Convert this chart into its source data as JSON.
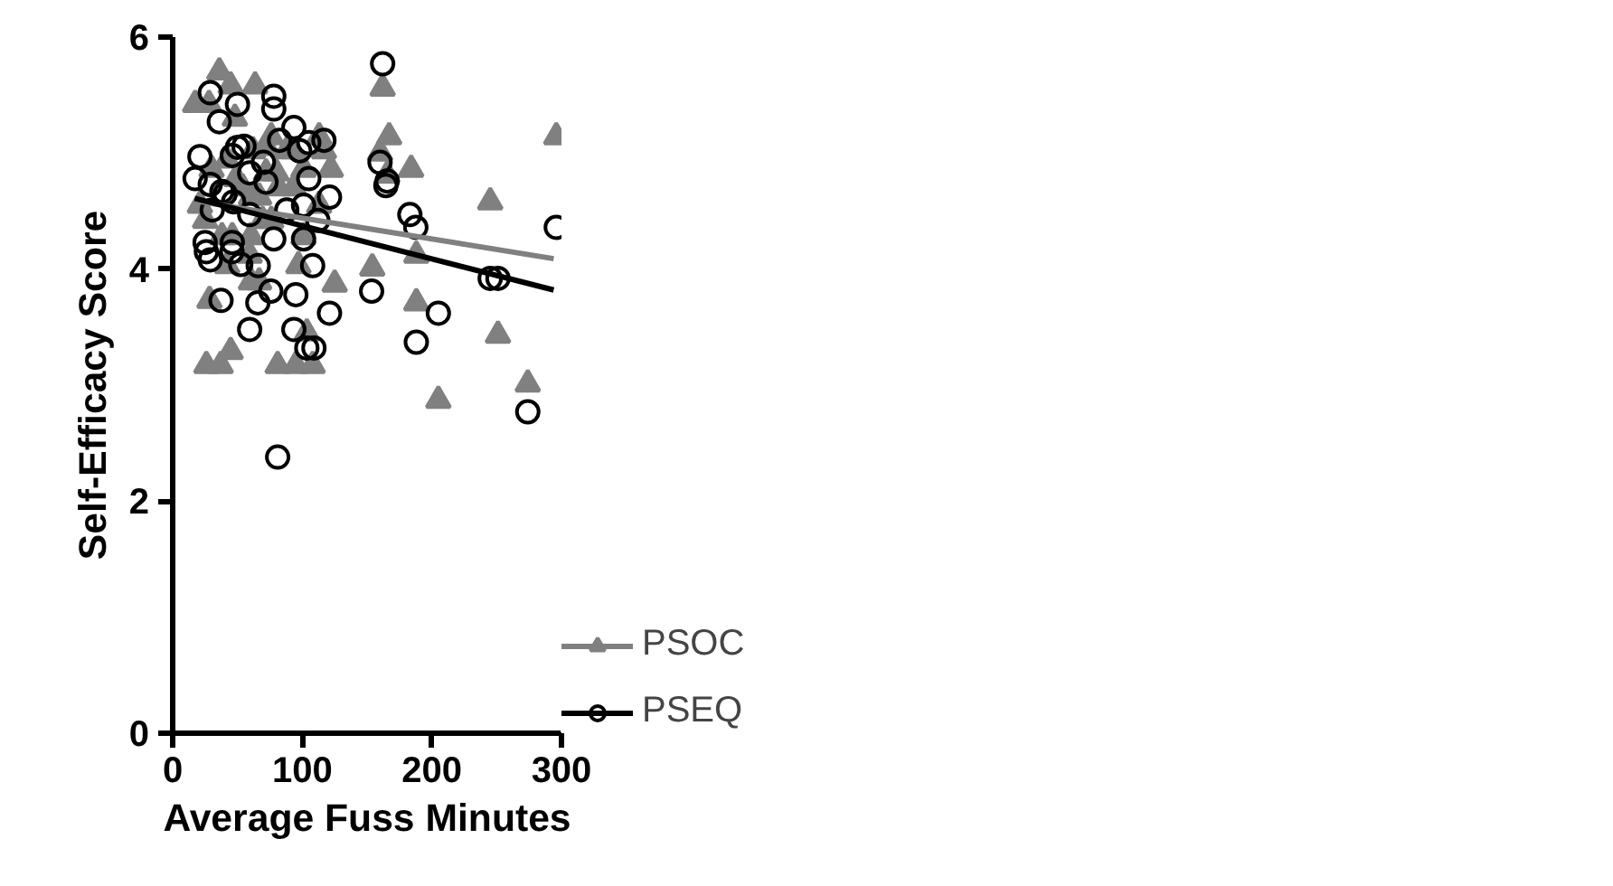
{
  "chart_data": {
    "type": "scatter",
    "xlabel": "Average Fuss Minutes",
    "ylabel": "Self-Efficacy Score",
    "xlim": [
      0,
      300
    ],
    "ylim": [
      0,
      6
    ],
    "xticks": [
      0,
      100,
      200,
      300
    ],
    "yticks": [
      0,
      2,
      4,
      6
    ],
    "grid": false,
    "legend": "right",
    "series": [
      {
        "name": "PSOC",
        "color": "#808080",
        "marker": "triangle",
        "x": [
          162,
          167,
          160,
          165.5,
          184,
          154,
          188,
          188,
          205,
          245,
          251,
          274,
          296,
          63.6,
          76,
          72.5,
          62,
          88,
          93.5,
          113,
          116.7,
          80,
          72,
          101,
          122,
          93.5,
          81.5,
          60.4,
          66.7,
          113,
          69.4,
          76,
          60.4,
          101,
          59.4,
          97,
          60.4,
          66.7,
          125,
          103.5,
          81,
          95,
          108,
          36,
          44.7,
          17.3,
          28,
          48,
          30,
          42,
          49,
          54,
          21,
          25,
          38,
          46,
          42,
          28.4,
          26,
          37,
          44.7
        ],
        "values": [
          5.56,
          5.14,
          5.0,
          4.81,
          4.86,
          4.01,
          4.12,
          3.71,
          2.87,
          4.58,
          3.43,
          3.01,
          5.14,
          5.58,
          5.14,
          5.05,
          5.02,
          5.02,
          5.02,
          5.14,
          5.02,
          4.83,
          4.83,
          4.86,
          4.86,
          4.7,
          4.7,
          4.62,
          4.62,
          4.55,
          4.42,
          4.42,
          4.28,
          4.28,
          4.12,
          4.03,
          3.89,
          3.89,
          3.87,
          3.45,
          3.17,
          3.17,
          3.17,
          5.7,
          5.58,
          5.42,
          5.42,
          5.3,
          4.86,
          4.94,
          4.78,
          4.7,
          4.55,
          4.42,
          4.28,
          4.28,
          4.03,
          3.73,
          3.17,
          3.17,
          3.29
        ]
      },
      {
        "name": "PSEQ",
        "color": "#000000",
        "marker": "circle",
        "x": [
          162,
          160,
          165.5,
          164.5,
          183,
          187.6,
          153.5,
          205,
          188,
          245,
          251,
          274,
          296,
          78,
          78,
          82.5,
          93.5,
          98,
          105,
          116.7,
          70,
          59.4,
          72,
          105,
          121,
          88,
          101,
          112,
          59.4,
          78,
          101,
          108,
          66,
          65.7,
          75.7,
          95,
          59.4,
          93.5,
          103.5,
          109,
          121,
          81,
          29,
          36,
          50,
          21,
          17.3,
          29,
          46,
          50,
          55,
          38,
          40.5,
          30.5,
          47,
          25,
          26,
          29,
          46,
          45.7,
          52.5,
          37.3
        ],
        "values": [
          5.77,
          4.92,
          4.76,
          4.72,
          4.47,
          4.36,
          3.81,
          3.62,
          3.37,
          3.92,
          3.92,
          2.77,
          4.36,
          5.49,
          5.38,
          5.11,
          5.22,
          5.02,
          5.09,
          5.11,
          4.92,
          4.83,
          4.75,
          4.78,
          4.62,
          4.51,
          4.55,
          4.42,
          4.47,
          4.26,
          4.26,
          4.03,
          4.03,
          3.71,
          3.81,
          3.78,
          3.48,
          3.48,
          3.32,
          3.32,
          3.62,
          2.38,
          5.52,
          5.27,
          5.42,
          4.97,
          4.78,
          4.73,
          4.98,
          5.05,
          5.06,
          4.67,
          4.65,
          4.51,
          4.58,
          4.23,
          4.15,
          4.08,
          4.23,
          4.15,
          4.04,
          3.73
        ]
      },
      {
        "type": "line",
        "color": "#808080",
        "x": [
          17,
          294
        ],
        "values": [
          4.59,
          4.09
        ]
      },
      {
        "type": "line",
        "color": "#000000",
        "x": [
          17,
          294
        ],
        "values": [
          4.61,
          3.82
        ]
      }
    ]
  }
}
